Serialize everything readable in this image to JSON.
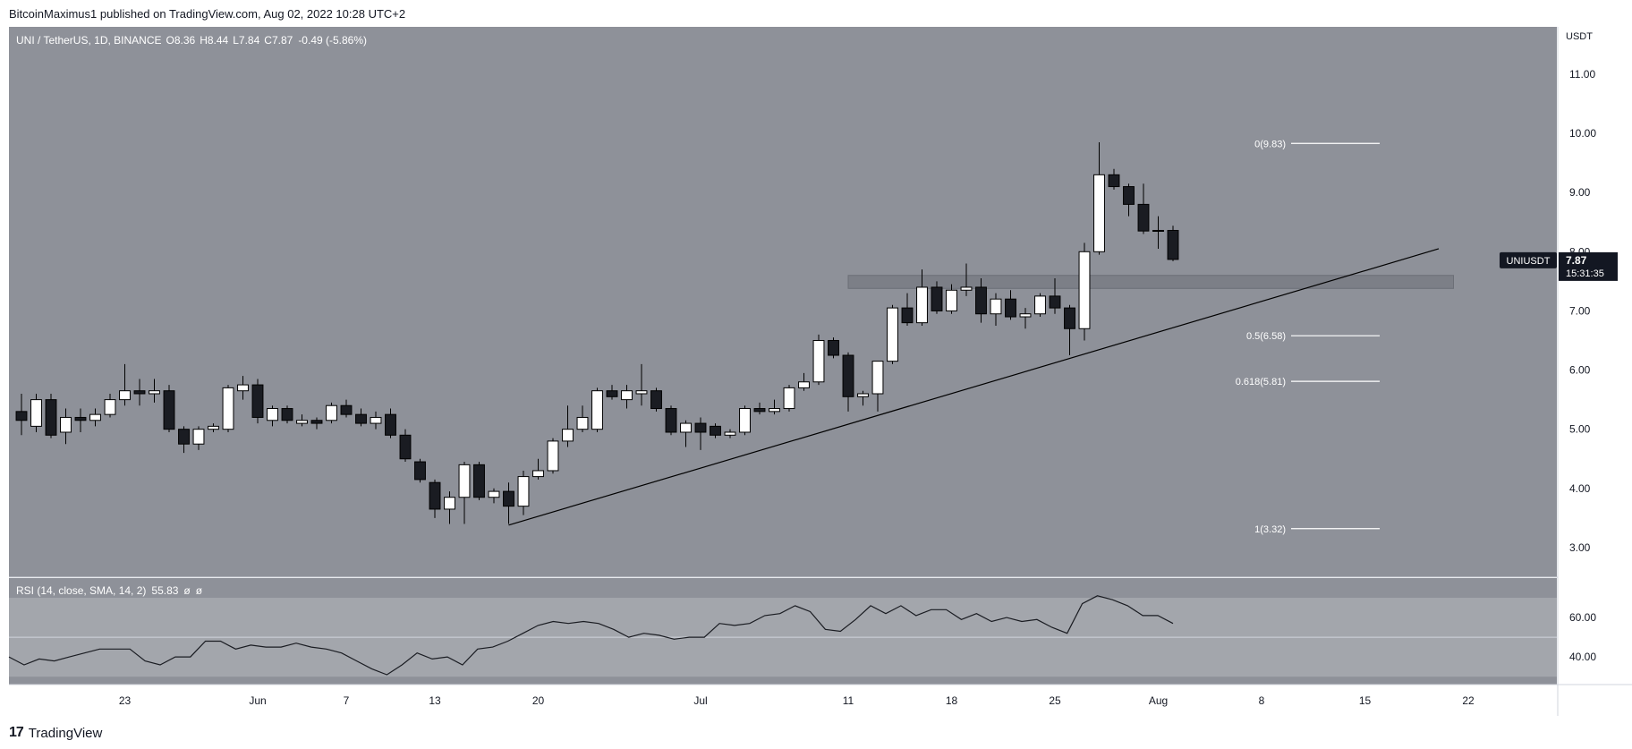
{
  "header": {
    "published": "BitcoinMaximus1 published on TradingView.com, Aug 02, 2022 10:28 UTC+2"
  },
  "footer": {
    "logo_mark": "17",
    "brand": "TradingView"
  },
  "colors": {
    "chart_bg": "#8e9199",
    "rsi_band": "#a3a6ac",
    "bull": "#ffffff",
    "bear": "#1a1c22",
    "line": "#000000",
    "zone": "#7c7f87"
  },
  "chart_data": [
    {
      "type": "candlestick",
      "symbol_line": {
        "pair": "UNI / TetherUS, 1D, BINANCE",
        "o_key": "O",
        "o": "8.36",
        "h_key": "H",
        "h": "8.44",
        "l_key": "L",
        "l": "7.84",
        "c_key": "C",
        "c": "7.87",
        "change": "-0.49 (-5.86%)"
      },
      "currency": "USDT",
      "ylim": [
        2.5,
        11.8
      ],
      "y_ticks": [
        "11.00",
        "10.00",
        "9.00",
        "8.00",
        "7.00",
        "6.00",
        "5.00",
        "4.00",
        "3.00"
      ],
      "x_ticks": [
        "23",
        "Jun",
        "7",
        "13",
        "20",
        "Jul",
        "11",
        "18",
        "25",
        "Aug",
        "8",
        "15",
        "22"
      ],
      "x_tick_dates": [
        "2022-05-23",
        "2022-06-01",
        "2022-06-07",
        "2022-06-13",
        "2022-06-20",
        "2022-07-01",
        "2022-07-11",
        "2022-07-18",
        "2022-07-25",
        "2022-08-01",
        "2022-08-08",
        "2022-08-15",
        "2022-08-22"
      ],
      "x_domain": [
        "2022-05-16",
        "2022-08-28"
      ],
      "candles": [
        {
          "d": "2022-05-16",
          "o": 5.3,
          "h": 5.6,
          "l": 4.9,
          "c": 5.15
        },
        {
          "d": "2022-05-17",
          "o": 5.05,
          "h": 5.6,
          "l": 4.95,
          "c": 5.5
        },
        {
          "d": "2022-05-18",
          "o": 5.5,
          "h": 5.6,
          "l": 4.85,
          "c": 4.9
        },
        {
          "d": "2022-05-19",
          "o": 4.95,
          "h": 5.35,
          "l": 4.75,
          "c": 5.2
        },
        {
          "d": "2022-05-20",
          "o": 5.2,
          "h": 5.35,
          "l": 4.95,
          "c": 5.15
        },
        {
          "d": "2022-05-21",
          "o": 5.15,
          "h": 5.35,
          "l": 5.05,
          "c": 5.25
        },
        {
          "d": "2022-05-22",
          "o": 5.25,
          "h": 5.6,
          "l": 5.2,
          "c": 5.5
        },
        {
          "d": "2022-05-23",
          "o": 5.5,
          "h": 6.1,
          "l": 5.4,
          "c": 5.65
        },
        {
          "d": "2022-05-24",
          "o": 5.65,
          "h": 5.85,
          "l": 5.4,
          "c": 5.6
        },
        {
          "d": "2022-05-25",
          "o": 5.6,
          "h": 5.85,
          "l": 5.45,
          "c": 5.65
        },
        {
          "d": "2022-05-26",
          "o": 5.65,
          "h": 5.75,
          "l": 4.95,
          "c": 5.0
        },
        {
          "d": "2022-05-27",
          "o": 5.0,
          "h": 5.05,
          "l": 4.6,
          "c": 4.75
        },
        {
          "d": "2022-05-28",
          "o": 4.75,
          "h": 5.05,
          "l": 4.65,
          "c": 5.0
        },
        {
          "d": "2022-05-29",
          "o": 5.0,
          "h": 5.1,
          "l": 4.95,
          "c": 5.05
        },
        {
          "d": "2022-05-30",
          "o": 5.0,
          "h": 5.75,
          "l": 4.95,
          "c": 5.7
        },
        {
          "d": "2022-05-31",
          "o": 5.65,
          "h": 5.9,
          "l": 5.5,
          "c": 5.75
        },
        {
          "d": "2022-06-01",
          "o": 5.75,
          "h": 5.85,
          "l": 5.1,
          "c": 5.2
        },
        {
          "d": "2022-06-02",
          "o": 5.15,
          "h": 5.4,
          "l": 5.05,
          "c": 5.35
        },
        {
          "d": "2022-06-03",
          "o": 5.35,
          "h": 5.4,
          "l": 5.1,
          "c": 5.15
        },
        {
          "d": "2022-06-04",
          "o": 5.1,
          "h": 5.25,
          "l": 5.05,
          "c": 5.15
        },
        {
          "d": "2022-06-05",
          "o": 5.15,
          "h": 5.2,
          "l": 5.0,
          "c": 5.1
        },
        {
          "d": "2022-06-06",
          "o": 5.15,
          "h": 5.45,
          "l": 5.1,
          "c": 5.4
        },
        {
          "d": "2022-06-07",
          "o": 5.4,
          "h": 5.5,
          "l": 5.2,
          "c": 5.25
        },
        {
          "d": "2022-06-08",
          "o": 5.25,
          "h": 5.35,
          "l": 5.05,
          "c": 5.1
        },
        {
          "d": "2022-06-09",
          "o": 5.1,
          "h": 5.3,
          "l": 5.0,
          "c": 5.2
        },
        {
          "d": "2022-06-10",
          "o": 5.25,
          "h": 5.35,
          "l": 4.85,
          "c": 4.9
        },
        {
          "d": "2022-06-11",
          "o": 4.9,
          "h": 5.0,
          "l": 4.45,
          "c": 4.5
        },
        {
          "d": "2022-06-12",
          "o": 4.45,
          "h": 4.5,
          "l": 4.1,
          "c": 4.15
        },
        {
          "d": "2022-06-13",
          "o": 4.1,
          "h": 4.15,
          "l": 3.5,
          "c": 3.65
        },
        {
          "d": "2022-06-14",
          "o": 3.65,
          "h": 3.95,
          "l": 3.4,
          "c": 3.85
        },
        {
          "d": "2022-06-15",
          "o": 3.85,
          "h": 4.45,
          "l": 3.4,
          "c": 4.4
        },
        {
          "d": "2022-06-16",
          "o": 4.4,
          "h": 4.45,
          "l": 3.8,
          "c": 3.85
        },
        {
          "d": "2022-06-17",
          "o": 3.85,
          "h": 4.0,
          "l": 3.75,
          "c": 3.95
        },
        {
          "d": "2022-06-18",
          "o": 3.95,
          "h": 4.1,
          "l": 3.4,
          "c": 3.7
        },
        {
          "d": "2022-06-19",
          "o": 3.7,
          "h": 4.3,
          "l": 3.55,
          "c": 4.2
        },
        {
          "d": "2022-06-20",
          "o": 4.2,
          "h": 4.5,
          "l": 4.15,
          "c": 4.3
        },
        {
          "d": "2022-06-21",
          "o": 4.3,
          "h": 4.85,
          "l": 4.25,
          "c": 4.8
        },
        {
          "d": "2022-06-22",
          "o": 4.8,
          "h": 5.4,
          "l": 4.7,
          "c": 5.0
        },
        {
          "d": "2022-06-23",
          "o": 5.0,
          "h": 5.4,
          "l": 4.95,
          "c": 5.2
        },
        {
          "d": "2022-06-24",
          "o": 5.0,
          "h": 5.7,
          "l": 4.95,
          "c": 5.65
        },
        {
          "d": "2022-06-25",
          "o": 5.65,
          "h": 5.75,
          "l": 5.5,
          "c": 5.55
        },
        {
          "d": "2022-06-26",
          "o": 5.5,
          "h": 5.75,
          "l": 5.35,
          "c": 5.65
        },
        {
          "d": "2022-06-27",
          "o": 5.6,
          "h": 6.1,
          "l": 5.4,
          "c": 5.65
        },
        {
          "d": "2022-06-28",
          "o": 5.65,
          "h": 5.7,
          "l": 5.3,
          "c": 5.35
        },
        {
          "d": "2022-06-29",
          "o": 5.35,
          "h": 5.4,
          "l": 4.9,
          "c": 4.95
        },
        {
          "d": "2022-06-30",
          "o": 4.95,
          "h": 5.15,
          "l": 4.7,
          "c": 5.1
        },
        {
          "d": "2022-07-01",
          "o": 5.1,
          "h": 5.2,
          "l": 4.65,
          "c": 4.95
        },
        {
          "d": "2022-07-02",
          "o": 5.05,
          "h": 5.1,
          "l": 4.85,
          "c": 4.9
        },
        {
          "d": "2022-07-03",
          "o": 4.9,
          "h": 5.0,
          "l": 4.85,
          "c": 4.95
        },
        {
          "d": "2022-07-04",
          "o": 4.95,
          "h": 5.4,
          "l": 4.9,
          "c": 5.35
        },
        {
          "d": "2022-07-05",
          "o": 5.35,
          "h": 5.45,
          "l": 5.25,
          "c": 5.3
        },
        {
          "d": "2022-07-06",
          "o": 5.3,
          "h": 5.5,
          "l": 5.25,
          "c": 5.35
        },
        {
          "d": "2022-07-07",
          "o": 5.35,
          "h": 5.75,
          "l": 5.3,
          "c": 5.7
        },
        {
          "d": "2022-07-08",
          "o": 5.7,
          "h": 5.95,
          "l": 5.65,
          "c": 5.8
        },
        {
          "d": "2022-07-09",
          "o": 5.8,
          "h": 6.6,
          "l": 5.75,
          "c": 6.5
        },
        {
          "d": "2022-07-10",
          "o": 6.5,
          "h": 6.55,
          "l": 6.2,
          "c": 6.25
        },
        {
          "d": "2022-07-11",
          "o": 6.25,
          "h": 6.3,
          "l": 5.3,
          "c": 5.55
        },
        {
          "d": "2022-07-12",
          "o": 5.55,
          "h": 5.65,
          "l": 5.4,
          "c": 5.6
        },
        {
          "d": "2022-07-13",
          "o": 5.6,
          "h": 6.15,
          "l": 5.3,
          "c": 6.15
        },
        {
          "d": "2022-07-14",
          "o": 6.15,
          "h": 7.1,
          "l": 6.1,
          "c": 7.05
        },
        {
          "d": "2022-07-15",
          "o": 7.05,
          "h": 7.3,
          "l": 6.75,
          "c": 6.8
        },
        {
          "d": "2022-07-16",
          "o": 6.8,
          "h": 7.7,
          "l": 6.75,
          "c": 7.4
        },
        {
          "d": "2022-07-17",
          "o": 7.4,
          "h": 7.5,
          "l": 6.95,
          "c": 7.0
        },
        {
          "d": "2022-07-18",
          "o": 7.0,
          "h": 7.45,
          "l": 6.95,
          "c": 7.35
        },
        {
          "d": "2022-07-19",
          "o": 7.35,
          "h": 7.8,
          "l": 7.25,
          "c": 7.4
        },
        {
          "d": "2022-07-20",
          "o": 7.4,
          "h": 7.55,
          "l": 6.8,
          "c": 6.95
        },
        {
          "d": "2022-07-21",
          "o": 6.95,
          "h": 7.3,
          "l": 6.75,
          "c": 7.2
        },
        {
          "d": "2022-07-22",
          "o": 7.2,
          "h": 7.35,
          "l": 6.85,
          "c": 6.9
        },
        {
          "d": "2022-07-23",
          "o": 6.9,
          "h": 7.05,
          "l": 6.7,
          "c": 6.95
        },
        {
          "d": "2022-07-24",
          "o": 6.95,
          "h": 7.3,
          "l": 6.9,
          "c": 7.25
        },
        {
          "d": "2022-07-25",
          "o": 7.25,
          "h": 7.55,
          "l": 6.95,
          "c": 7.05
        },
        {
          "d": "2022-07-26",
          "o": 7.05,
          "h": 7.1,
          "l": 6.25,
          "c": 6.7
        },
        {
          "d": "2022-07-27",
          "o": 6.7,
          "h": 8.15,
          "l": 6.5,
          "c": 8.0
        },
        {
          "d": "2022-07-28",
          "o": 8.0,
          "h": 9.85,
          "l": 7.95,
          "c": 9.3
        },
        {
          "d": "2022-07-29",
          "o": 9.3,
          "h": 9.4,
          "l": 9.05,
          "c": 9.1
        },
        {
          "d": "2022-07-30",
          "o": 9.1,
          "h": 9.15,
          "l": 8.6,
          "c": 8.8
        },
        {
          "d": "2022-07-31",
          "o": 8.8,
          "h": 9.15,
          "l": 8.3,
          "c": 8.35
        },
        {
          "d": "2022-08-01",
          "o": 8.35,
          "h": 8.6,
          "l": 8.05,
          "c": 8.36
        },
        {
          "d": "2022-08-02",
          "o": 8.36,
          "h": 8.44,
          "l": 7.84,
          "c": 7.87
        }
      ],
      "horizontal_zone": {
        "from_date": "2022-07-11",
        "to_date": "2022-08-21",
        "y_low": 7.38,
        "y_high": 7.6
      },
      "trendline": [
        {
          "d": "2022-06-18",
          "y": 3.38
        },
        {
          "d": "2022-08-20",
          "y": 8.05
        }
      ],
      "fib_levels": [
        {
          "label": "0(9.83)",
          "value": 9.83
        },
        {
          "label": "0.5(6.58)",
          "value": 6.58
        },
        {
          "label": "0.618(5.81)",
          "value": 5.81
        },
        {
          "label": "1(3.32)",
          "value": 3.32
        }
      ],
      "fib_line_dates": [
        "2022-08-10",
        "2022-08-16"
      ],
      "last_price": {
        "symbol": "UNIUSDT",
        "price": "7.87",
        "countdown": "15:31:35"
      }
    },
    {
      "type": "line",
      "title": "RSI (14, close, SMA, 14, 2)",
      "value_label": "55.83",
      "extra_labels": [
        "ø",
        "ø"
      ],
      "ylim": [
        26,
        80
      ],
      "band": [
        30,
        70
      ],
      "mid": 50,
      "y_ticks": [
        "60.00",
        "40.00"
      ],
      "y_tick_values": [
        60,
        40
      ],
      "series": [
        {
          "values": [
            40,
            36,
            39,
            38,
            40,
            42,
            44,
            44,
            44,
            38,
            36,
            40,
            40,
            48,
            48,
            44,
            46,
            45,
            45,
            47,
            45,
            44,
            42,
            38,
            34,
            31,
            36,
            42,
            39,
            40,
            36,
            44,
            45,
            48,
            52,
            56,
            58,
            57,
            58,
            57,
            54,
            50,
            52,
            51,
            49,
            50,
            50,
            57,
            56,
            57,
            61,
            62,
            66,
            63,
            54,
            53,
            59,
            66,
            62,
            66,
            61,
            64,
            64,
            59,
            62,
            58,
            60,
            58,
            59,
            55,
            52,
            67,
            71,
            69,
            66,
            61,
            61,
            57
          ]
        }
      ]
    }
  ]
}
